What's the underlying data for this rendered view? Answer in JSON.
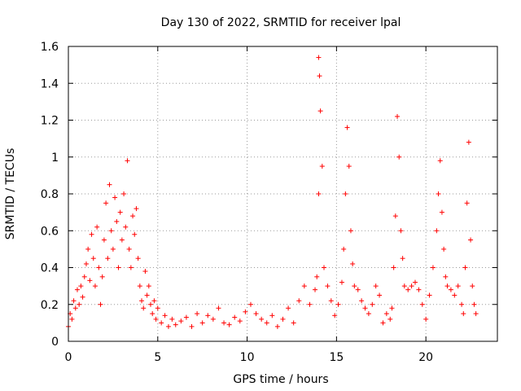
{
  "colors": {
    "series": "#ff0000",
    "axis": "#000000",
    "grid": "#9a9a9a",
    "background": "#ffffff"
  },
  "chart_data": {
    "type": "scatter",
    "title": "Day 130 of 2022, SRMTID for receiver lpal",
    "xlabel": "GPS time / hours",
    "ylabel": "SRMTID / TECUs",
    "xlim": [
      0,
      24
    ],
    "ylim": [
      0,
      1.6
    ],
    "xticks": [
      0,
      5,
      10,
      15,
      20
    ],
    "xtick_labels": [
      "0",
      "5",
      "10",
      "15",
      "20"
    ],
    "yticks": [
      0,
      0.2,
      0.4,
      0.6,
      0.8,
      1,
      1.2,
      1.4,
      1.6
    ],
    "ytick_labels": [
      "0",
      "0.2",
      "0.4",
      "0.6",
      "0.8",
      "1",
      "1.2",
      "1.4",
      "1.6"
    ],
    "grid": true,
    "marker": "plus",
    "series": [
      {
        "name": "SRMTID",
        "color": "#ff0000",
        "x": [
          0.0,
          0.1,
          0.2,
          0.3,
          0.4,
          0.5,
          0.6,
          0.7,
          0.8,
          0.9,
          1.0,
          1.1,
          1.2,
          1.3,
          1.4,
          1.5,
          1.6,
          1.7,
          1.8,
          1.9,
          2.0,
          2.1,
          2.2,
          2.3,
          2.4,
          2.5,
          2.6,
          2.7,
          2.8,
          2.9,
          3.0,
          3.1,
          3.2,
          3.3,
          3.4,
          3.5,
          3.6,
          3.7,
          3.8,
          3.9,
          4.0,
          4.1,
          4.2,
          4.3,
          4.4,
          4.5,
          4.6,
          4.7,
          4.8,
          4.9,
          5.0,
          5.2,
          5.4,
          5.6,
          5.8,
          6.0,
          6.3,
          6.6,
          6.9,
          7.2,
          7.5,
          7.8,
          8.1,
          8.4,
          8.7,
          9.0,
          9.3,
          9.6,
          9.9,
          10.2,
          10.5,
          10.8,
          11.1,
          11.4,
          11.7,
          12.0,
          12.3,
          12.6,
          12.9,
          13.2,
          13.5,
          13.8,
          13.9,
          14.0,
          14.0,
          14.05,
          14.1,
          14.2,
          14.3,
          14.5,
          14.7,
          14.9,
          15.1,
          15.3,
          15.4,
          15.5,
          15.6,
          15.7,
          15.8,
          15.9,
          16.0,
          16.2,
          16.4,
          16.6,
          16.8,
          17.0,
          17.2,
          17.4,
          17.6,
          17.8,
          18.0,
          18.1,
          18.2,
          18.3,
          18.4,
          18.5,
          18.6,
          18.7,
          18.8,
          19.0,
          19.2,
          19.4,
          19.6,
          19.8,
          20.0,
          20.2,
          20.4,
          20.6,
          20.7,
          20.8,
          20.9,
          21.0,
          21.1,
          21.2,
          21.4,
          21.6,
          21.8,
          22.0,
          22.1,
          22.2,
          22.3,
          22.4,
          22.5,
          22.6,
          22.7,
          22.8
        ],
        "y": [
          0.08,
          0.15,
          0.12,
          0.22,
          0.18,
          0.28,
          0.2,
          0.3,
          0.24,
          0.35,
          0.42,
          0.5,
          0.33,
          0.58,
          0.45,
          0.3,
          0.62,
          0.4,
          0.2,
          0.35,
          0.55,
          0.75,
          0.45,
          0.85,
          0.6,
          0.5,
          0.78,
          0.65,
          0.4,
          0.7,
          0.55,
          0.8,
          0.62,
          0.98,
          0.5,
          0.4,
          0.68,
          0.58,
          0.72,
          0.45,
          0.3,
          0.22,
          0.18,
          0.38,
          0.25,
          0.3,
          0.2,
          0.15,
          0.22,
          0.12,
          0.18,
          0.1,
          0.14,
          0.08,
          0.12,
          0.09,
          0.11,
          0.13,
          0.08,
          0.15,
          0.1,
          0.14,
          0.12,
          0.18,
          0.1,
          0.09,
          0.13,
          0.11,
          0.16,
          0.2,
          0.15,
          0.12,
          0.1,
          0.14,
          0.08,
          0.12,
          0.18,
          0.1,
          0.22,
          0.3,
          0.2,
          0.28,
          0.35,
          0.8,
          1.54,
          1.44,
          1.25,
          0.95,
          0.4,
          0.3,
          0.22,
          0.14,
          0.2,
          0.32,
          0.5,
          0.8,
          1.16,
          0.95,
          0.6,
          0.42,
          0.3,
          0.28,
          0.22,
          0.18,
          0.15,
          0.2,
          0.3,
          0.25,
          0.1,
          0.15,
          0.12,
          0.18,
          0.4,
          0.68,
          1.22,
          1.0,
          0.6,
          0.45,
          0.3,
          0.28,
          0.3,
          0.32,
          0.28,
          0.2,
          0.12,
          0.25,
          0.4,
          0.6,
          0.8,
          0.98,
          0.7,
          0.5,
          0.35,
          0.3,
          0.28,
          0.25,
          0.3,
          0.2,
          0.15,
          0.4,
          0.75,
          1.08,
          0.55,
          0.3,
          0.2,
          0.15
        ]
      }
    ]
  }
}
